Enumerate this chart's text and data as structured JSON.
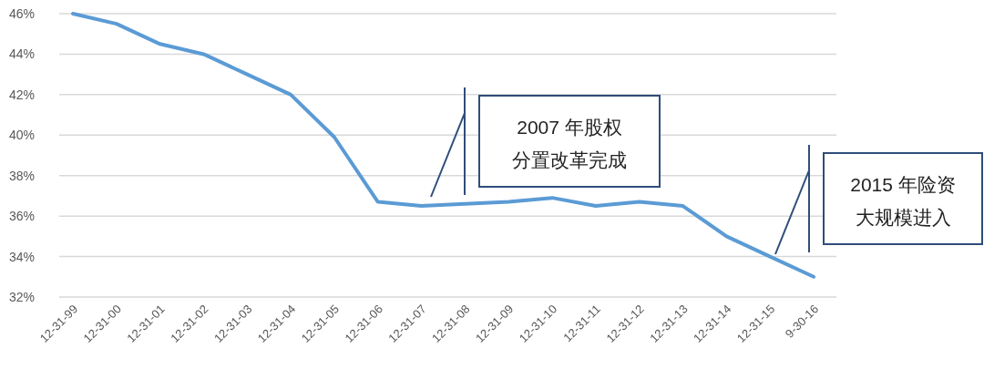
{
  "chart_data": {
    "type": "line",
    "categories": [
      "12-31-99",
      "12-31-00",
      "12-31-01",
      "12-31-02",
      "12-31-03",
      "12-31-04",
      "12-31-05",
      "12-31-06",
      "12-31-07",
      "12-31-08",
      "12-31-09",
      "12-31-10",
      "12-31-11",
      "12-31-12",
      "12-31-13",
      "12-31-14",
      "12-31-15",
      "9-30-16"
    ],
    "series": [
      {
        "color": "#5b9bd5",
        "values": [
          46.0,
          45.5,
          44.5,
          44.0,
          43.0,
          42.0,
          39.9,
          36.7,
          36.5,
          36.6,
          36.7,
          36.9,
          36.5,
          36.7,
          36.5,
          35.0,
          34.0,
          33.0
        ]
      }
    ],
    "ylim": [
      32,
      46
    ],
    "yticks": [
      {
        "value": 32,
        "label": "32%"
      },
      {
        "value": 34,
        "label": "34%"
      },
      {
        "value": 36,
        "label": "36%"
      },
      {
        "value": 38,
        "label": "38%"
      },
      {
        "value": 40,
        "label": "40%"
      },
      {
        "value": 42,
        "label": "42%"
      },
      {
        "value": 44,
        "label": "44%"
      },
      {
        "value": 46,
        "label": "46%"
      }
    ],
    "grid": "y",
    "marker": "none",
    "line_style": "solid",
    "annotations": [
      "2007 年股权分置改革完成",
      "2015 年险资大规模进入"
    ]
  }
}
